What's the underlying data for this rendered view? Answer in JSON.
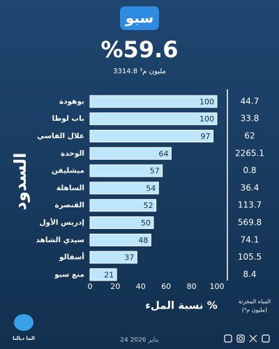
{
  "chart_data": {
    "type": "bar",
    "orientation": "horizontal",
    "badge": "سبو",
    "title": "%59.6",
    "subtitle": "3314.8 مليون م³",
    "side_label": "السدود",
    "x_label": "نسبة الملء %",
    "categories": [
      "بوهودة",
      "باب لوطا",
      "علال الفاسي",
      "الوحدة",
      "ميشليفن",
      "الساهلة",
      "القنصرة",
      "إدريس الأول",
      "سيدي الشاهد",
      "أسفالو",
      "منع سبو"
    ],
    "values": [
      100,
      100,
      97,
      64,
      57,
      54,
      52,
      50,
      48,
      37,
      21
    ],
    "color": "#bde6fa",
    "xlim": [
      0,
      100
    ],
    "xticks": [
      0,
      20,
      40,
      60,
      80,
      100
    ],
    "stored_title": [
      "المياه المخزنة",
      "(مليون م³)"
    ],
    "stored": [
      "44.7",
      "33.8",
      "62",
      "2265.1",
      "0.8",
      "36.4",
      "113.7",
      "569.8",
      "74.1",
      "105.5",
      "8.4"
    ],
    "logo": "الما ديالنا",
    "date": "24 يناير 2026"
  }
}
